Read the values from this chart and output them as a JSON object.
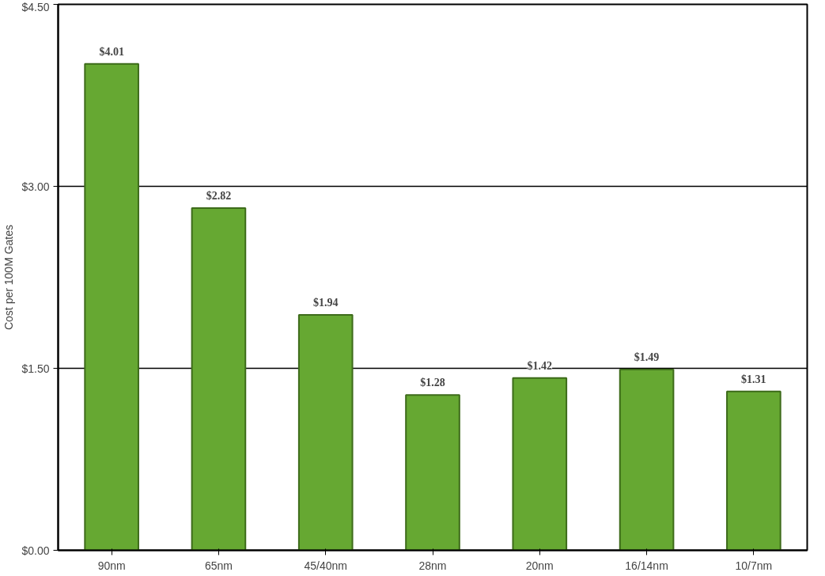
{
  "chart_data": {
    "type": "bar",
    "ylabel": "Cost per 100M Gates",
    "categories": [
      "90nm",
      "65nm",
      "45/40nm",
      "28nm",
      "20nm",
      "16/14nm",
      "10/7nm"
    ],
    "values": [
      4.01,
      2.82,
      1.94,
      1.28,
      1.42,
      1.49,
      1.31
    ],
    "value_labels": [
      "$4.01",
      "$2.82",
      "$1.94",
      "$1.28",
      "$1.42",
      "$1.49",
      "$1.31"
    ],
    "color": "#66a832",
    "ylim": [
      0,
      4.5
    ],
    "yticks": [
      {
        "value": 0,
        "label": "$0.00"
      },
      {
        "value": 1.5,
        "label": "$1.50"
      },
      {
        "value": 3,
        "label": "$3.00"
      },
      {
        "value": 4.5,
        "label": "$4.50"
      }
    ],
    "grid": "y"
  }
}
